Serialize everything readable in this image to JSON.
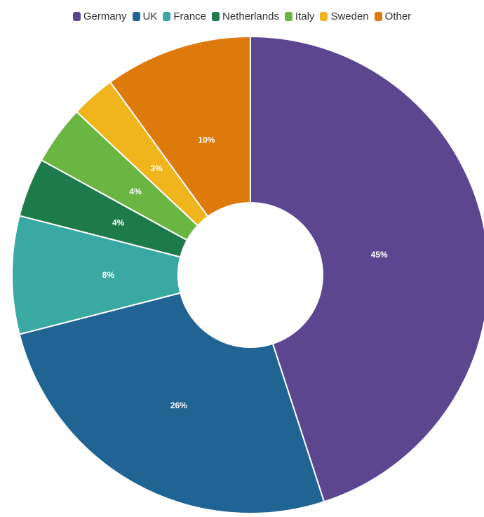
{
  "chart_data": {
    "type": "pie",
    "donut": true,
    "legend_position": "top",
    "slices": [
      {
        "label": "Germany",
        "value": 45,
        "value_label": "45%",
        "color": "#5d4690"
      },
      {
        "label": "UK",
        "value": 26,
        "value_label": "26%",
        "color": "#1f6493"
      },
      {
        "label": "France",
        "value": 8,
        "value_label": "8%",
        "color": "#3aa9a3"
      },
      {
        "label": "Netherlands",
        "value": 4,
        "value_label": "4%",
        "color": "#1d7a4b"
      },
      {
        "label": "Italy",
        "value": 4,
        "value_label": "4%",
        "color": "#6bb543"
      },
      {
        "label": "Sweden",
        "value": 3,
        "value_label": "3%",
        "color": "#f0b41c"
      },
      {
        "label": "Other",
        "value": 10,
        "value_label": "10%",
        "color": "#de7a0b"
      }
    ]
  }
}
